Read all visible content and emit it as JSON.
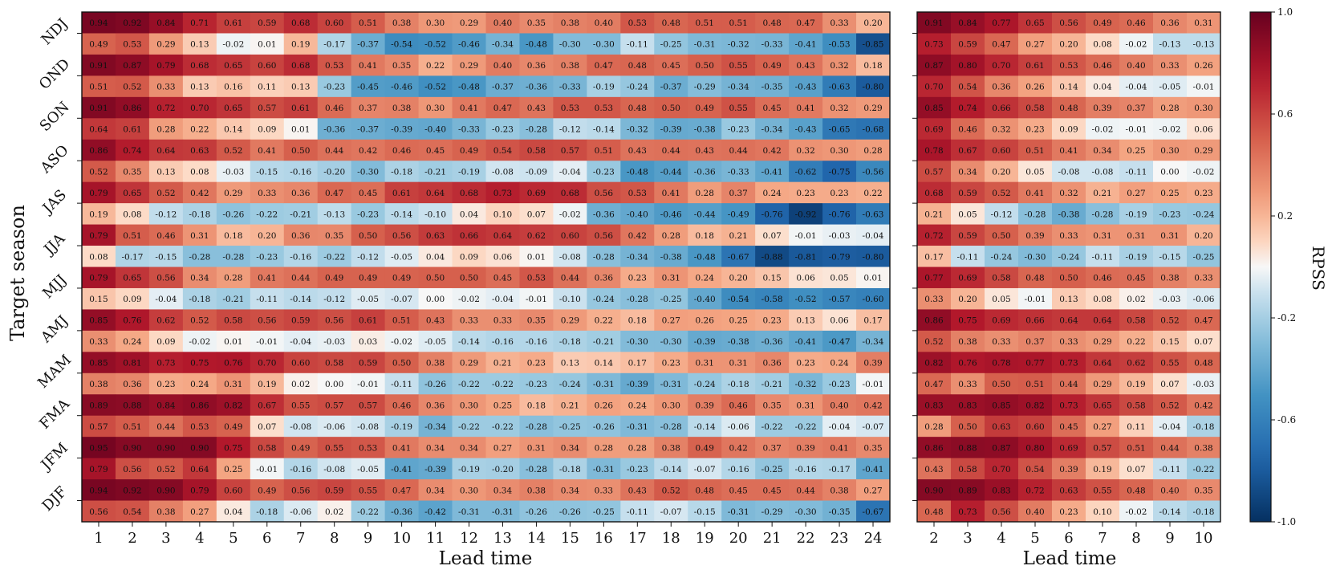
{
  "chart_data": [
    {
      "type": "heatmap",
      "xlabel": "Lead time",
      "ylabel": "Target season",
      "x": [
        "1",
        "2",
        "3",
        "4",
        "5",
        "6",
        "7",
        "8",
        "9",
        "10",
        "11",
        "12",
        "13",
        "14",
        "15",
        "16",
        "17",
        "18",
        "19",
        "20",
        "21",
        "22",
        "23",
        "24"
      ],
      "y": [
        "NDJ",
        "OND",
        "SON",
        "ASO",
        "JAS",
        "JJA",
        "MJJ",
        "AMJ",
        "MAM",
        "FMA",
        "JFM",
        "DJF"
      ],
      "top_values": [
        [
          0.94,
          0.92,
          0.84,
          0.71,
          0.61,
          0.59,
          0.68,
          0.6,
          0.51,
          0.38,
          0.3,
          0.29,
          0.4,
          0.35,
          0.38,
          0.4,
          0.53,
          0.48,
          0.51,
          0.51,
          0.48,
          0.47,
          0.33,
          0.2
        ],
        [
          0.91,
          0.87,
          0.79,
          0.68,
          0.65,
          0.6,
          0.68,
          0.53,
          0.41,
          0.35,
          0.22,
          0.29,
          0.4,
          0.36,
          0.38,
          0.47,
          0.48,
          0.45,
          0.5,
          0.55,
          0.49,
          0.43,
          0.32,
          0.18
        ],
        [
          0.91,
          0.86,
          0.72,
          0.7,
          0.65,
          0.57,
          0.61,
          0.46,
          0.37,
          0.38,
          0.3,
          0.41,
          0.47,
          0.43,
          0.53,
          0.53,
          0.48,
          0.5,
          0.49,
          0.55,
          0.45,
          0.41,
          0.32,
          0.29
        ],
        [
          0.86,
          0.74,
          0.64,
          0.63,
          0.52,
          0.41,
          0.5,
          0.44,
          0.42,
          0.46,
          0.45,
          0.49,
          0.54,
          0.58,
          0.57,
          0.51,
          0.43,
          0.44,
          0.43,
          0.44,
          0.42,
          0.32,
          0.3,
          0.28
        ],
        [
          0.79,
          0.65,
          0.52,
          0.42,
          0.29,
          0.33,
          0.36,
          0.47,
          0.45,
          0.61,
          0.64,
          0.68,
          0.73,
          0.69,
          0.68,
          0.56,
          0.53,
          0.41,
          0.28,
          0.37,
          0.24,
          0.23,
          0.23,
          0.22
        ],
        [
          0.79,
          0.51,
          0.46,
          0.31,
          0.18,
          0.2,
          0.36,
          0.35,
          0.5,
          0.56,
          0.63,
          0.66,
          0.64,
          0.62,
          0.6,
          0.56,
          0.42,
          0.28,
          0.18,
          0.21,
          0.07,
          -0.01,
          -0.03,
          -0.04
        ],
        [
          0.79,
          0.65,
          0.56,
          0.34,
          0.28,
          0.41,
          0.44,
          0.49,
          0.49,
          0.49,
          0.5,
          0.5,
          0.45,
          0.53,
          0.44,
          0.36,
          0.23,
          0.31,
          0.24,
          0.2,
          0.15,
          0.06,
          0.05,
          0.01
        ],
        [
          0.85,
          0.76,
          0.62,
          0.52,
          0.58,
          0.56,
          0.59,
          0.56,
          0.61,
          0.51,
          0.43,
          0.33,
          0.33,
          0.35,
          0.29,
          0.22,
          0.18,
          0.27,
          0.26,
          0.25,
          0.23,
          0.13,
          0.06,
          0.17
        ],
        [
          0.85,
          0.81,
          0.73,
          0.75,
          0.76,
          0.7,
          0.6,
          0.58,
          0.59,
          0.5,
          0.38,
          0.29,
          0.21,
          0.23,
          0.13,
          0.14,
          0.17,
          0.23,
          0.31,
          0.31,
          0.36,
          0.23,
          0.24,
          0.39
        ],
        [
          0.89,
          0.88,
          0.84,
          0.86,
          0.82,
          0.67,
          0.55,
          0.57,
          0.57,
          0.46,
          0.36,
          0.3,
          0.25,
          0.18,
          0.21,
          0.26,
          0.24,
          0.3,
          0.39,
          0.46,
          0.35,
          0.31,
          0.4,
          0.42
        ],
        [
          0.95,
          0.9,
          0.9,
          0.9,
          0.75,
          0.58,
          0.49,
          0.55,
          0.53,
          0.41,
          0.34,
          0.34,
          0.27,
          0.31,
          0.34,
          0.28,
          0.28,
          0.38,
          0.49,
          0.42,
          0.37,
          0.39,
          0.41,
          0.35
        ],
        [
          0.94,
          0.92,
          0.9,
          0.79,
          0.6,
          0.49,
          0.56,
          0.59,
          0.55,
          0.47,
          0.34,
          0.3,
          0.34,
          0.38,
          0.34,
          0.33,
          0.43,
          0.52,
          0.48,
          0.45,
          0.45,
          0.44,
          0.38,
          0.27
        ]
      ],
      "bottom_values": [
        [
          0.49,
          0.53,
          0.29,
          0.13,
          -0.02,
          0.01,
          0.19,
          -0.17,
          -0.37,
          -0.54,
          -0.52,
          -0.46,
          -0.34,
          -0.48,
          -0.3,
          -0.3,
          -0.11,
          -0.25,
          -0.31,
          -0.32,
          -0.33,
          -0.41,
          -0.53,
          -0.85
        ],
        [
          0.51,
          0.52,
          0.33,
          0.13,
          0.16,
          0.11,
          0.13,
          -0.23,
          -0.45,
          -0.46,
          -0.52,
          -0.48,
          -0.37,
          -0.36,
          -0.33,
          -0.19,
          -0.24,
          -0.37,
          -0.29,
          -0.34,
          -0.35,
          -0.43,
          -0.63,
          -0.8
        ],
        [
          0.64,
          0.61,
          0.28,
          0.22,
          0.14,
          0.09,
          0.01,
          -0.36,
          -0.37,
          -0.39,
          -0.4,
          -0.33,
          -0.23,
          -0.28,
          -0.12,
          -0.14,
          -0.32,
          -0.39,
          -0.38,
          -0.23,
          -0.34,
          -0.43,
          -0.65,
          -0.68
        ],
        [
          0.52,
          0.35,
          0.13,
          0.08,
          -0.03,
          -0.15,
          -0.16,
          -0.2,
          -0.3,
          -0.18,
          -0.21,
          -0.19,
          -0.08,
          -0.09,
          -0.04,
          -0.23,
          -0.48,
          -0.44,
          -0.36,
          -0.33,
          -0.41,
          -0.62,
          -0.75,
          -0.56
        ],
        [
          0.19,
          0.08,
          -0.12,
          -0.18,
          -0.26,
          -0.22,
          -0.21,
          -0.13,
          -0.23,
          -0.14,
          -0.1,
          0.04,
          0.1,
          0.07,
          -0.02,
          -0.36,
          -0.4,
          -0.46,
          -0.44,
          -0.49,
          -0.76,
          -0.92,
          -0.76,
          -0.63
        ],
        [
          0.08,
          -0.17,
          -0.15,
          -0.28,
          -0.28,
          -0.23,
          -0.16,
          -0.22,
          -0.12,
          -0.05,
          0.04,
          0.09,
          0.06,
          0.01,
          -0.08,
          -0.28,
          -0.34,
          -0.38,
          -0.48,
          -0.67,
          -0.88,
          -0.81,
          -0.79,
          -0.8
        ],
        [
          0.15,
          0.09,
          -0.04,
          -0.18,
          -0.21,
          -0.11,
          -0.14,
          -0.12,
          -0.05,
          -0.07,
          -0.0,
          -0.02,
          -0.04,
          -0.01,
          -0.1,
          -0.24,
          -0.28,
          -0.25,
          -0.4,
          -0.54,
          -0.58,
          -0.52,
          -0.57,
          -0.6
        ],
        [
          0.33,
          0.24,
          0.09,
          -0.02,
          0.01,
          -0.01,
          -0.04,
          -0.03,
          0.03,
          -0.02,
          -0.05,
          -0.14,
          -0.16,
          -0.16,
          -0.18,
          -0.21,
          -0.3,
          -0.3,
          -0.39,
          -0.38,
          -0.36,
          -0.41,
          -0.47,
          -0.34
        ],
        [
          0.38,
          0.36,
          0.23,
          0.24,
          0.31,
          0.19,
          0.02,
          -0.0,
          -0.01,
          -0.11,
          -0.26,
          -0.22,
          -0.22,
          -0.23,
          -0.24,
          -0.31,
          -0.39,
          -0.31,
          -0.24,
          -0.18,
          -0.21,
          -0.32,
          -0.23,
          -0.01
        ],
        [
          0.57,
          0.51,
          0.44,
          0.53,
          0.49,
          0.07,
          -0.08,
          -0.06,
          -0.08,
          -0.19,
          -0.34,
          -0.22,
          -0.22,
          -0.28,
          -0.25,
          -0.26,
          -0.31,
          -0.28,
          -0.14,
          -0.06,
          -0.22,
          -0.22,
          -0.04,
          -0.07
        ],
        [
          0.79,
          0.56,
          0.52,
          0.64,
          0.25,
          -0.01,
          -0.16,
          -0.08,
          -0.05,
          -0.41,
          -0.39,
          -0.19,
          -0.2,
          -0.28,
          -0.18,
          -0.31,
          -0.23,
          -0.14,
          -0.07,
          -0.16,
          -0.25,
          -0.16,
          -0.17,
          -0.41
        ],
        [
          0.56,
          0.54,
          0.38,
          0.27,
          0.04,
          -0.18,
          -0.06,
          0.02,
          -0.22,
          -0.36,
          -0.42,
          -0.31,
          -0.31,
          -0.26,
          -0.26,
          -0.25,
          -0.11,
          -0.07,
          -0.15,
          -0.31,
          -0.29,
          -0.3,
          -0.35,
          -0.67
        ]
      ],
      "colormap": "RdBu_r",
      "vlim": [
        -1,
        1
      ]
    },
    {
      "type": "heatmap",
      "xlabel": "Lead time",
      "ylabel": "",
      "x": [
        "2",
        "3",
        "4",
        "5",
        "6",
        "7",
        "8",
        "9",
        "10"
      ],
      "y": [
        "NDJ",
        "OND",
        "SON",
        "ASO",
        "JAS",
        "JJA",
        "MJJ",
        "AMJ",
        "MAM",
        "FMA",
        "JFM",
        "DJF"
      ],
      "top_values": [
        [
          0.91,
          0.84,
          0.77,
          0.65,
          0.56,
          0.49,
          0.46,
          0.36,
          0.31
        ],
        [
          0.87,
          0.8,
          0.7,
          0.61,
          0.53,
          0.46,
          0.4,
          0.33,
          0.26
        ],
        [
          0.85,
          0.74,
          0.66,
          0.58,
          0.48,
          0.39,
          0.37,
          0.28,
          0.3
        ],
        [
          0.78,
          0.67,
          0.6,
          0.51,
          0.41,
          0.34,
          0.25,
          0.3,
          0.29
        ],
        [
          0.68,
          0.59,
          0.52,
          0.41,
          0.32,
          0.21,
          0.27,
          0.25,
          0.23
        ],
        [
          0.72,
          0.59,
          0.5,
          0.39,
          0.33,
          0.31,
          0.31,
          0.31,
          0.2
        ],
        [
          0.77,
          0.69,
          0.58,
          0.48,
          0.5,
          0.46,
          0.45,
          0.38,
          0.33
        ],
        [
          0.86,
          0.75,
          0.69,
          0.66,
          0.64,
          0.64,
          0.58,
          0.52,
          0.47
        ],
        [
          0.82,
          0.76,
          0.78,
          0.77,
          0.73,
          0.64,
          0.62,
          0.55,
          0.48
        ],
        [
          0.83,
          0.83,
          0.85,
          0.82,
          0.73,
          0.65,
          0.58,
          0.52,
          0.42
        ],
        [
          0.86,
          0.88,
          0.87,
          0.8,
          0.69,
          0.57,
          0.51,
          0.44,
          0.38
        ],
        [
          0.9,
          0.89,
          0.83,
          0.72,
          0.63,
          0.55,
          0.48,
          0.4,
          0.35
        ]
      ],
      "bottom_values": [
        [
          0.73,
          0.59,
          0.47,
          0.27,
          0.2,
          0.08,
          -0.02,
          -0.13,
          -0.13
        ],
        [
          0.7,
          0.54,
          0.36,
          0.26,
          0.14,
          0.04,
          -0.04,
          -0.05,
          -0.01
        ],
        [
          0.69,
          0.46,
          0.32,
          0.23,
          0.09,
          -0.02,
          -0.01,
          -0.02,
          0.06
        ],
        [
          0.57,
          0.34,
          0.2,
          0.05,
          -0.08,
          -0.08,
          -0.11,
          0.0,
          -0.02
        ],
        [
          0.21,
          0.05,
          -0.12,
          -0.28,
          -0.38,
          -0.28,
          -0.19,
          -0.23,
          -0.24
        ],
        [
          0.17,
          -0.11,
          -0.24,
          -0.3,
          -0.24,
          -0.11,
          -0.19,
          -0.15,
          -0.25
        ],
        [
          0.33,
          0.2,
          0.05,
          -0.01,
          0.13,
          0.08,
          0.02,
          -0.03,
          -0.06
        ],
        [
          0.52,
          0.38,
          0.33,
          0.37,
          0.33,
          0.29,
          0.22,
          0.15,
          0.07
        ],
        [
          0.47,
          0.33,
          0.5,
          0.51,
          0.44,
          0.29,
          0.19,
          0.07,
          -0.03
        ],
        [
          0.28,
          0.5,
          0.63,
          0.6,
          0.45,
          0.27,
          0.11,
          -0.04,
          -0.18
        ],
        [
          0.43,
          0.58,
          0.7,
          0.54,
          0.39,
          0.19,
          0.07,
          -0.11,
          -0.22
        ],
        [
          0.48,
          0.73,
          0.56,
          0.4,
          0.23,
          0.1,
          -0.02,
          -0.14,
          -0.18
        ]
      ],
      "colormap": "RdBu_r",
      "vlim": [
        -1,
        1
      ]
    }
  ],
  "colorbar": {
    "label": "RPSS",
    "ticks": [
      "1.0",
      "0.6",
      "0.2",
      "-0.2",
      "-0.6",
      "-1.0"
    ]
  }
}
